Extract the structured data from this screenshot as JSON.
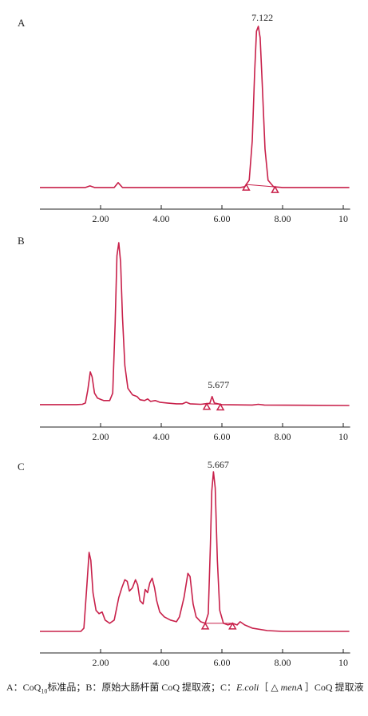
{
  "chart_data": [
    {
      "type": "line",
      "panel": "A",
      "xlim": [
        0,
        10.2
      ],
      "x_ticks": [
        2.0,
        4.0,
        6.0,
        8.0,
        10
      ],
      "x_tick_labels": [
        "2.00",
        "4.00",
        "6.00",
        "8.00",
        "10"
      ],
      "peak_label": "7.122",
      "peak_label_x": 7.122,
      "markers": [
        6.8,
        7.75
      ],
      "baseline_segment": [
        6.8,
        7.75
      ],
      "height_ref": 1.0,
      "series": [
        {
          "points": [
            [
              0,
              0.015
            ],
            [
              1.5,
              0.015
            ],
            [
              1.65,
              0.025
            ],
            [
              1.8,
              0.015
            ],
            [
              2.45,
              0.015
            ],
            [
              2.58,
              0.045
            ],
            [
              2.72,
              0.015
            ],
            [
              6.6,
              0.015
            ],
            [
              6.75,
              0.02
            ],
            [
              6.9,
              0.06
            ],
            [
              7.0,
              0.3
            ],
            [
              7.08,
              0.72
            ],
            [
              7.14,
              0.97
            ],
            [
              7.2,
              1.0
            ],
            [
              7.26,
              0.93
            ],
            [
              7.33,
              0.65
            ],
            [
              7.42,
              0.25
            ],
            [
              7.52,
              0.06
            ],
            [
              7.7,
              0.02
            ],
            [
              8.0,
              0.015
            ],
            [
              10.2,
              0.015
            ]
          ]
        }
      ]
    },
    {
      "type": "line",
      "panel": "B",
      "xlim": [
        0,
        10.2
      ],
      "x_ticks": [
        2.0,
        4.0,
        6.0,
        8.0,
        10
      ],
      "x_tick_labels": [
        "2.00",
        "4.00",
        "6.00",
        "8.00",
        "10"
      ],
      "peak_label": "5.677",
      "peak_label_x": 5.677,
      "markers": [
        5.5,
        5.95
      ],
      "baseline_segment": [
        5.5,
        5.95
      ],
      "height_ref": 1.0,
      "series": [
        {
          "points": [
            [
              0,
              0.01
            ],
            [
              1.2,
              0.01
            ],
            [
              1.4,
              0.012
            ],
            [
              1.5,
              0.02
            ],
            [
              1.58,
              0.1
            ],
            [
              1.66,
              0.21
            ],
            [
              1.72,
              0.18
            ],
            [
              1.8,
              0.08
            ],
            [
              1.9,
              0.05
            ],
            [
              2.1,
              0.035
            ],
            [
              2.3,
              0.035
            ],
            [
              2.4,
              0.08
            ],
            [
              2.48,
              0.5
            ],
            [
              2.54,
              0.92
            ],
            [
              2.6,
              1.0
            ],
            [
              2.66,
              0.88
            ],
            [
              2.72,
              0.55
            ],
            [
              2.8,
              0.25
            ],
            [
              2.9,
              0.11
            ],
            [
              3.05,
              0.07
            ],
            [
              3.2,
              0.06
            ],
            [
              3.3,
              0.04
            ],
            [
              3.45,
              0.035
            ],
            [
              3.55,
              0.045
            ],
            [
              3.65,
              0.03
            ],
            [
              3.8,
              0.035
            ],
            [
              3.95,
              0.025
            ],
            [
              4.2,
              0.02
            ],
            [
              4.5,
              0.015
            ],
            [
              4.7,
              0.015
            ],
            [
              4.82,
              0.025
            ],
            [
              4.95,
              0.015
            ],
            [
              5.3,
              0.012
            ],
            [
              5.6,
              0.018
            ],
            [
              5.677,
              0.06
            ],
            [
              5.75,
              0.02
            ],
            [
              6.0,
              0.01
            ],
            [
              7.0,
              0.008
            ],
            [
              7.2,
              0.012
            ],
            [
              7.4,
              0.008
            ],
            [
              10.2,
              0.005
            ]
          ]
        }
      ]
    },
    {
      "type": "line",
      "panel": "C",
      "xlim": [
        0,
        10.2
      ],
      "x_ticks": [
        2.0,
        4.0,
        6.0,
        8.0,
        10
      ],
      "x_tick_labels": [
        "2.00",
        "4.00",
        "6.00",
        "8.00",
        "10"
      ],
      "peak_label": "5.667",
      "peak_label_x": 5.667,
      "markers": [
        5.45,
        6.35
      ],
      "baseline_segment": [
        5.45,
        6.35
      ],
      "height_ref": 1.0,
      "series": [
        {
          "points": [
            [
              0,
              0.01
            ],
            [
              1.2,
              0.01
            ],
            [
              1.35,
              0.01
            ],
            [
              1.45,
              0.03
            ],
            [
              1.55,
              0.3
            ],
            [
              1.62,
              0.5
            ],
            [
              1.68,
              0.45
            ],
            [
              1.75,
              0.25
            ],
            [
              1.85,
              0.14
            ],
            [
              1.95,
              0.12
            ],
            [
              2.05,
              0.13
            ],
            [
              2.15,
              0.08
            ],
            [
              2.3,
              0.06
            ],
            [
              2.45,
              0.08
            ],
            [
              2.6,
              0.22
            ],
            [
              2.7,
              0.28
            ],
            [
              2.8,
              0.33
            ],
            [
              2.88,
              0.32
            ],
            [
              2.95,
              0.26
            ],
            [
              3.05,
              0.28
            ],
            [
              3.15,
              0.33
            ],
            [
              3.22,
              0.3
            ],
            [
              3.3,
              0.2
            ],
            [
              3.4,
              0.18
            ],
            [
              3.47,
              0.27
            ],
            [
              3.55,
              0.25
            ],
            [
              3.62,
              0.31
            ],
            [
              3.7,
              0.34
            ],
            [
              3.78,
              0.28
            ],
            [
              3.85,
              0.2
            ],
            [
              3.95,
              0.13
            ],
            [
              4.1,
              0.1
            ],
            [
              4.3,
              0.08
            ],
            [
              4.5,
              0.07
            ],
            [
              4.6,
              0.1
            ],
            [
              4.75,
              0.22
            ],
            [
              4.88,
              0.37
            ],
            [
              4.95,
              0.35
            ],
            [
              5.05,
              0.18
            ],
            [
              5.15,
              0.1
            ],
            [
              5.3,
              0.07
            ],
            [
              5.45,
              0.06
            ],
            [
              5.55,
              0.12
            ],
            [
              5.62,
              0.55
            ],
            [
              5.667,
              0.88
            ],
            [
              5.72,
              1.0
            ],
            [
              5.78,
              0.9
            ],
            [
              5.85,
              0.45
            ],
            [
              5.93,
              0.14
            ],
            [
              6.05,
              0.06
            ],
            [
              6.2,
              0.05
            ],
            [
              6.35,
              0.06
            ],
            [
              6.5,
              0.05
            ],
            [
              6.6,
              0.07
            ],
            [
              6.75,
              0.05
            ],
            [
              7.0,
              0.03
            ],
            [
              7.5,
              0.015
            ],
            [
              8.0,
              0.01
            ],
            [
              10.2,
              0.01
            ]
          ]
        }
      ]
    }
  ],
  "caption_parts": [
    {
      "text": "A：CoQ",
      "italic": false,
      "sub": false
    },
    {
      "text": "10",
      "italic": false,
      "sub": true
    },
    {
      "text": "标准品；B：原始大肠杆菌 CoQ 提取液；C：",
      "italic": false,
      "sub": false
    },
    {
      "text": "E.coli",
      "italic": true,
      "sub": false
    },
    {
      "text": "［ △ ",
      "italic": false,
      "sub": false
    },
    {
      "text": "menA",
      "italic": true,
      "sub": false
    },
    {
      "text": " ］CoQ 提取液",
      "italic": false,
      "sub": false
    }
  ]
}
